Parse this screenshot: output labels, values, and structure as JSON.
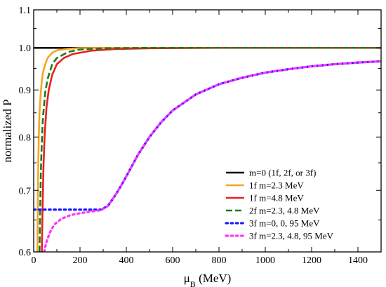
{
  "chart_data": {
    "type": "line",
    "xlabel": "μ_B (MeV)",
    "ylabel": "normalized P",
    "xlim": [
      0,
      1500
    ],
    "ylim": [
      0.6,
      1.1
    ],
    "y_scale": "log",
    "x_ticks": [
      0,
      200,
      400,
      600,
      800,
      1000,
      1200,
      1400
    ],
    "y_ticks": [
      0.6,
      0.7,
      0.8,
      0.9,
      1.0,
      1.1
    ],
    "y_tick_labels": [
      "0.6",
      "0.7",
      "0.8",
      "0.9",
      "1.0",
      "1.1"
    ],
    "grid": false,
    "legend_position": "bottom-right",
    "series": [
      {
        "name": "m=0 (1f, 2f, or 3f)",
        "color": "#000000",
        "style": "solid",
        "x": [
          0,
          1500
        ],
        "y": [
          1.0,
          1.0
        ]
      },
      {
        "name": "1f m=2.3 MeV",
        "color": "#f5a623",
        "style": "solid",
        "x": [
          16,
          18,
          20,
          22,
          25,
          30,
          35,
          40,
          50,
          60,
          80,
          100,
          150,
          200,
          300,
          500,
          1500
        ],
        "y": [
          0.6,
          0.68,
          0.75,
          0.8,
          0.85,
          0.89,
          0.92,
          0.94,
          0.96,
          0.975,
          0.988,
          0.994,
          0.998,
          0.9995,
          1.0,
          1.0,
          1.0
        ]
      },
      {
        "name": "1f m=4.8 MeV",
        "color": "#e8221b",
        "style": "solid",
        "x": [
          35,
          38,
          42,
          47,
          55,
          65,
          80,
          100,
          130,
          170,
          250,
          350,
          500,
          800,
          1500
        ],
        "y": [
          0.6,
          0.66,
          0.74,
          0.8,
          0.86,
          0.9,
          0.935,
          0.96,
          0.975,
          0.985,
          0.993,
          0.997,
          0.999,
          1.0,
          1.0
        ]
      },
      {
        "name": "2f m=2.3, 4.8 MeV",
        "color": "#1c7a1c",
        "style": "dashed",
        "x": [
          25,
          28,
          32,
          36,
          40,
          50,
          60,
          80,
          100,
          150,
          200,
          300,
          500,
          1500
        ],
        "y": [
          0.6,
          0.67,
          0.75,
          0.8,
          0.84,
          0.895,
          0.925,
          0.96,
          0.975,
          0.99,
          0.996,
          0.999,
          1.0,
          1.0
        ]
      },
      {
        "name": "3f m=0, 0, 95 MeV",
        "color": "#1a1aff",
        "style": "dotted",
        "x": [
          0,
          100,
          200,
          290,
          320,
          350,
          380,
          400,
          450,
          500,
          550,
          600,
          700,
          800,
          900,
          1000,
          1100,
          1200,
          1300,
          1400,
          1500
        ],
        "y": [
          0.667,
          0.667,
          0.667,
          0.667,
          0.673,
          0.69,
          0.71,
          0.725,
          0.765,
          0.8,
          0.83,
          0.855,
          0.89,
          0.913,
          0.928,
          0.94,
          0.948,
          0.955,
          0.96,
          0.964,
          0.967
        ]
      },
      {
        "name": "3f m=2.3, 4.8, 95 MeV",
        "color": "#ff33ff",
        "style": "dotted",
        "x": [
          45,
          55,
          70,
          90,
          120,
          160,
          200,
          250,
          290,
          320,
          350,
          380,
          400,
          450,
          500,
          550,
          600,
          700,
          800,
          900,
          1000,
          1100,
          1200,
          1300,
          1400,
          1500
        ],
        "y": [
          0.6,
          0.615,
          0.63,
          0.643,
          0.652,
          0.658,
          0.661,
          0.664,
          0.666,
          0.673,
          0.69,
          0.71,
          0.725,
          0.765,
          0.8,
          0.83,
          0.855,
          0.89,
          0.913,
          0.928,
          0.94,
          0.948,
          0.955,
          0.96,
          0.964,
          0.967
        ]
      }
    ]
  }
}
